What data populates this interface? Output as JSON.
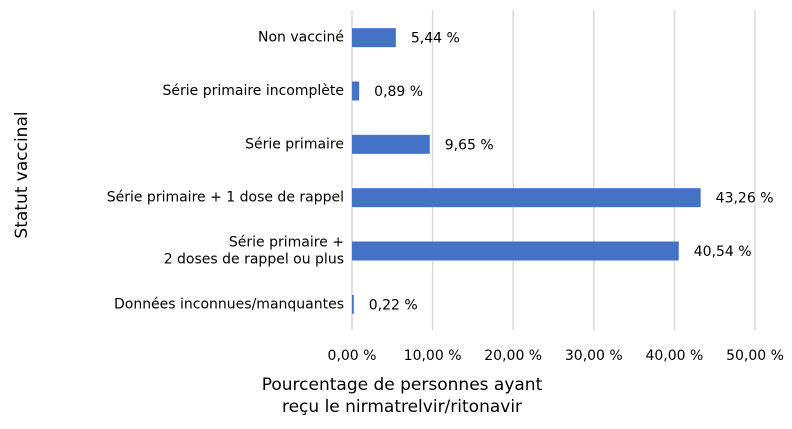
{
  "chart_data": {
    "type": "bar",
    "orientation": "horizontal",
    "categories": [
      "Non vacciné",
      "Série primaire incomplète",
      "Série primaire",
      "Série primaire + 1 dose de rappel",
      "Série primaire +\n2 doses de rappel ou plus",
      "Données inconnues/manquantes"
    ],
    "values": [
      5.44,
      0.89,
      9.65,
      43.26,
      40.54,
      0.22
    ],
    "value_labels": [
      "5,44 %",
      "0,89 %",
      "9,65 %",
      "43,26 %",
      "40,54 %",
      "0,22 %"
    ],
    "color": "#4472c4",
    "xlabel": "Pourcentage de personnes ayant\nreçu le nirmatrelvir/ritonavir",
    "ylabel": "Statut vaccinal",
    "xlim": [
      0,
      50
    ],
    "xticks": [
      {
        "value": 0,
        "label": "0,00 %"
      },
      {
        "value": 10,
        "label": "10,00 %"
      },
      {
        "value": 20,
        "label": "20,00 %"
      },
      {
        "value": 30,
        "label": "30,00 %"
      },
      {
        "value": 40,
        "label": "40,00 %"
      },
      {
        "value": 50,
        "label": "50,00 %"
      }
    ],
    "grid": true
  }
}
